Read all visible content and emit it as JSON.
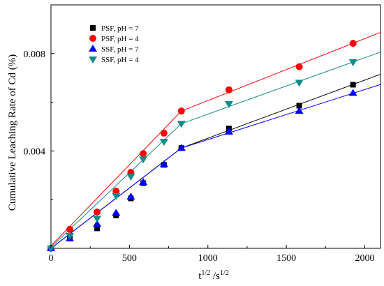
{
  "chart_data": {
    "type": "scatter",
    "xlabel": "t^(1/2) /s^(1/2)",
    "ylabel": "Cumulative Leaching Rate of Cd  (%)",
    "xlim": [
      0,
      2100
    ],
    "ylim": [
      0,
      0.01
    ],
    "xticks": [
      0,
      500,
      1000,
      1500,
      2000
    ],
    "xtick_labels": [
      "0",
      "500",
      "1000",
      "1500",
      "2000"
    ],
    "yticks": [
      0.004,
      0.008
    ],
    "ytick_labels": [
      "0.004",
      "0.008"
    ],
    "grid": false,
    "legend_position": "top-left",
    "series": [
      {
        "name": "PSF, pH = 7",
        "marker": "square",
        "color": "#000000",
        "x": [
          0,
          120,
          294,
          415,
          509,
          588,
          720,
          831,
          1134,
          1582,
          1925
        ],
        "y": [
          0,
          0.00042,
          0.00082,
          0.00135,
          0.00205,
          0.00268,
          0.00343,
          0.00412,
          0.00492,
          0.00586,
          0.00672
        ],
        "fit": [
          [
            0,
            0,
            831,
            0.00412
          ],
          [
            831,
            0.00412,
            2100,
            0.00715
          ]
        ]
      },
      {
        "name": "PSF, pH = 4",
        "marker": "circle",
        "color": "#ff0000",
        "x": [
          0,
          120,
          294,
          415,
          509,
          588,
          720,
          831,
          1134,
          1582,
          1925
        ],
        "y": [
          0,
          0.00078,
          0.00149,
          0.00235,
          0.00312,
          0.00389,
          0.00473,
          0.00564,
          0.00651,
          0.00746,
          0.00842
        ],
        "fit": [
          [
            0,
            0.0001,
            831,
            0.00564
          ],
          [
            831,
            0.00564,
            2100,
            0.00887
          ]
        ]
      },
      {
        "name": "SSF, pH = 7",
        "marker": "triangle-up",
        "color": "#0000ff",
        "x": [
          0,
          120,
          294,
          415,
          509,
          588,
          720,
          831,
          1134,
          1582,
          1925
        ],
        "y": [
          0,
          0.0004,
          0.001,
          0.00145,
          0.00212,
          0.00272,
          0.00345,
          0.00412,
          0.00479,
          0.00564,
          0.00638
        ],
        "fit": [
          [
            0,
            0,
            831,
            0.00412
          ],
          [
            831,
            0.00412,
            2100,
            0.00673
          ]
        ]
      },
      {
        "name": "SSF, pH = 4",
        "marker": "triangle-down",
        "color": "#138a8a",
        "x": [
          0,
          120,
          294,
          415,
          509,
          588,
          720,
          831,
          1134,
          1582,
          1925
        ],
        "y": [
          0,
          0.00052,
          0.00122,
          0.00216,
          0.00295,
          0.00366,
          0.00438,
          0.00512,
          0.00593,
          0.00681,
          0.00765
        ],
        "fit": [
          [
            0,
            5e-05,
            831,
            0.00512
          ],
          [
            831,
            0.00512,
            2100,
            0.00806
          ]
        ]
      }
    ]
  }
}
